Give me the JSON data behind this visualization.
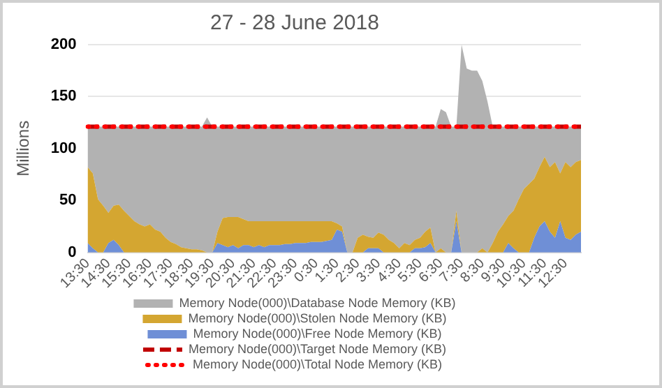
{
  "chart_data": {
    "type": "area",
    "title": "27 - 28 June 2018",
    "ylabel": "Millions",
    "categories": [
      "13:30",
      null,
      null,
      null,
      "14:30",
      null,
      null,
      null,
      "15:30",
      null,
      null,
      null,
      "16:30",
      null,
      null,
      null,
      "17:30",
      null,
      null,
      null,
      "18:30",
      null,
      null,
      null,
      "19:30",
      null,
      null,
      null,
      "20:30",
      null,
      null,
      null,
      "21:30",
      null,
      null,
      null,
      "22:30",
      null,
      null,
      null,
      "23:30",
      null,
      null,
      null,
      "0:30",
      null,
      null,
      null,
      "1:30",
      null,
      null,
      null,
      "2:30",
      null,
      null,
      null,
      "3:30",
      null,
      null,
      null,
      "4:30",
      null,
      null,
      null,
      "5:30",
      null,
      null,
      null,
      "6:30",
      null,
      null,
      null,
      "7:30",
      null,
      null,
      null,
      "8:30",
      null,
      null,
      null,
      "9:30",
      null,
      null,
      null,
      "10:30",
      null,
      null,
      null,
      "11:30",
      null,
      null,
      null,
      "12:30",
      null,
      null,
      null
    ],
    "stacked": true,
    "ylim": [
      0,
      200
    ],
    "yticks": [
      0,
      50,
      100,
      150,
      200
    ],
    "grid": "y",
    "legend": "bottom",
    "marker": "none",
    "series": [
      {
        "name": "Memory Node(000)\\Free Node Memory (KB)",
        "color": "#6f8fd6",
        "values": [
          9,
          4,
          0,
          0,
          9,
          12,
          7,
          0,
          0,
          0,
          0,
          0,
          0,
          0,
          0,
          0,
          0,
          0,
          0,
          0,
          0,
          0,
          0,
          0,
          0,
          9,
          7,
          5,
          7,
          4,
          7,
          7,
          5,
          7,
          5,
          7,
          7,
          7,
          8,
          8,
          9,
          9,
          9,
          10,
          10,
          10,
          11,
          12,
          22,
          20,
          0,
          0,
          0,
          0,
          4,
          4,
          4,
          0,
          0,
          0,
          0,
          0,
          0,
          4,
          4,
          5,
          9,
          0,
          0,
          0,
          0,
          30,
          0,
          0,
          0,
          0,
          0,
          0,
          0,
          0,
          0,
          9,
          4,
          0,
          0,
          0,
          14,
          25,
          30,
          20,
          14,
          30,
          14,
          12,
          17,
          20
        ]
      },
      {
        "name": "Memory Node(000)\\Stolen Node Memory (KB)",
        "color": "#d4a631",
        "values": [
          73,
          72,
          51,
          45,
          29,
          33,
          39,
          40,
          35,
          30,
          27,
          25,
          27,
          22,
          20,
          14,
          10,
          8,
          5,
          4,
          3,
          3,
          2,
          0,
          0,
          11,
          26,
          29,
          27,
          30,
          25,
          23,
          25,
          23,
          25,
          23,
          23,
          23,
          22,
          22,
          21,
          21,
          21,
          20,
          20,
          20,
          19,
          18,
          6,
          5,
          0,
          0,
          14,
          17,
          11,
          10,
          15,
          17,
          12,
          9,
          4,
          9,
          7,
          8,
          10,
          15,
          15,
          0,
          4,
          0,
          0,
          10,
          0,
          0,
          0,
          0,
          4,
          0,
          9,
          20,
          27,
          26,
          36,
          51,
          61,
          66,
          57,
          57,
          62,
          62,
          73,
          46,
          73,
          70,
          70,
          69
        ]
      },
      {
        "name": "Memory Node(000)\\Database Node Memory (KB)",
        "color": "#b2b2b2",
        "values": [
          39,
          45,
          70,
          76,
          83,
          76,
          75,
          81,
          86,
          91,
          94,
          96,
          94,
          99,
          101,
          107,
          111,
          113,
          116,
          117,
          118,
          118,
          119,
          130,
          121,
          101,
          88,
          87,
          87,
          87,
          89,
          91,
          91,
          91,
          91,
          91,
          91,
          91,
          91,
          91,
          91,
          91,
          91,
          91,
          91,
          91,
          91,
          91,
          93,
          96,
          121,
          121,
          107,
          104,
          106,
          107,
          102,
          104,
          109,
          112,
          117,
          112,
          114,
          109,
          107,
          101,
          97,
          121,
          134,
          135,
          121,
          81,
          200,
          177,
          175,
          175,
          161,
          145,
          112,
          101,
          94,
          86,
          81,
          70,
          60,
          55,
          50,
          39,
          29,
          39,
          34,
          45,
          34,
          39,
          34,
          32
        ]
      },
      {
        "name": "Memory Node(000)\\Target Node Memory (KB)",
        "type": "line",
        "line_style": "dashed",
        "color": "#c00000",
        "values": [
          121,
          121,
          121,
          121,
          121,
          121,
          121,
          121,
          121,
          121,
          121,
          121,
          121,
          121,
          121,
          121,
          121,
          121,
          121,
          121,
          121,
          121,
          121,
          121,
          121,
          121,
          121,
          121,
          121,
          121,
          121,
          121,
          121,
          121,
          121,
          121,
          121,
          121,
          121,
          121,
          121,
          121,
          121,
          121,
          121,
          121,
          121,
          121,
          121,
          121,
          121,
          121,
          121,
          121,
          121,
          121,
          121,
          121,
          121,
          121,
          121,
          121,
          121,
          121,
          121,
          121,
          121,
          121,
          121,
          121,
          121,
          121,
          121,
          121,
          121,
          121,
          121,
          121,
          121,
          121,
          121,
          121,
          121,
          121,
          121,
          121,
          121,
          121,
          121,
          121,
          121,
          121,
          121,
          121,
          121,
          121
        ]
      },
      {
        "name": "Memory Node(000)\\Total Node Memory (KB)",
        "type": "line",
        "line_style": "dotted",
        "color": "#ff0000",
        "values": [
          121,
          121,
          121,
          121,
          121,
          121,
          121,
          121,
          121,
          121,
          121,
          121,
          121,
          121,
          121,
          121,
          121,
          121,
          121,
          121,
          121,
          121,
          121,
          121,
          121,
          121,
          121,
          121,
          121,
          121,
          121,
          121,
          121,
          121,
          121,
          121,
          121,
          121,
          121,
          121,
          121,
          121,
          121,
          121,
          121,
          121,
          121,
          121,
          121,
          121,
          121,
          121,
          121,
          121,
          121,
          121,
          121,
          121,
          121,
          121,
          121,
          121,
          121,
          121,
          121,
          121,
          121,
          121,
          121,
          121,
          121,
          121,
          121,
          121,
          121,
          121,
          121,
          121,
          121,
          121,
          121,
          121,
          121,
          121,
          121,
          121,
          121,
          121,
          121,
          121,
          121,
          121,
          121,
          121,
          121,
          121
        ]
      }
    ]
  }
}
